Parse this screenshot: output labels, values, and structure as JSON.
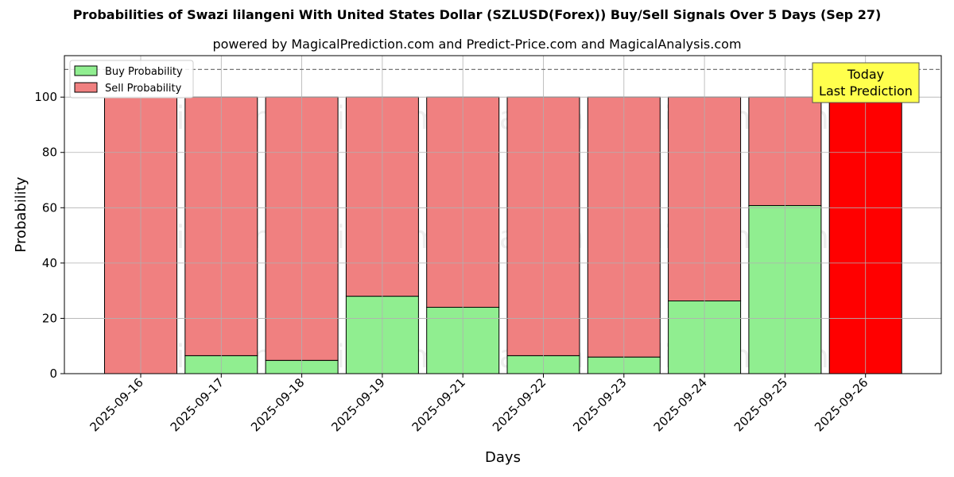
{
  "chart_data": {
    "type": "bar",
    "title": "Probabilities of Swazi lilangeni With United States Dollar (SZLUSD(Forex)) Buy/Sell Signals Over 5 Days (Sep 27)",
    "subtitle": "powered by MagicalPrediction.com and Predict-Price.com and MagicalAnalysis.com",
    "xlabel": "Days",
    "ylabel": "Probability",
    "ylim": [
      0,
      115
    ],
    "yticks": [
      0,
      20,
      40,
      60,
      80,
      100
    ],
    "grid": true,
    "stacked": true,
    "legend_position": "top-left",
    "reference_line": 110,
    "categories": [
      "2025-09-16",
      "2025-09-17",
      "2025-09-18",
      "2025-09-19",
      "2025-09-21",
      "2025-09-22",
      "2025-09-23",
      "2025-09-24",
      "2025-09-25",
      "2025-09-26"
    ],
    "series": [
      {
        "name": "Buy Probability",
        "color": "#90ee90",
        "values": [
          0,
          6.5,
          4.8,
          28,
          24,
          6.5,
          6,
          26.3,
          60.8,
          0
        ]
      },
      {
        "name": "Sell Probability",
        "color": "#f08080",
        "values": [
          100,
          93.5,
          95.2,
          72,
          76,
          93.5,
          94,
          73.7,
          39.2,
          100
        ]
      }
    ],
    "highlight": {
      "index": 9,
      "color": "#ff0000"
    },
    "annotation": {
      "lines": [
        "Today",
        "Last Prediction"
      ],
      "background": "#ffff4d"
    },
    "watermarks": [
      "MagicalAnalysis.com",
      "MagicalPrediction.com"
    ]
  }
}
